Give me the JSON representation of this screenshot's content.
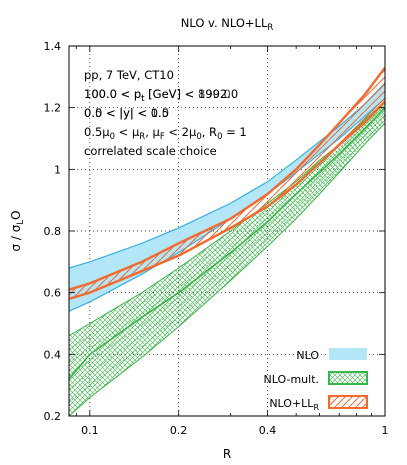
{
  "chart_data": {
    "type": "area",
    "title": "NLO v. NLO+LL_R",
    "xlabel": "R",
    "ylabel": "σ / σ_LO",
    "xscale": "log",
    "xlim": [
      0.085,
      1.0
    ],
    "ylim": [
      0.2,
      1.4
    ],
    "xticks": [
      0.1,
      0.2,
      0.4,
      1
    ],
    "xtick_labels": [
      "0.1",
      "0.2",
      "0.4",
      "1"
    ],
    "yticks": [
      0.2,
      0.4,
      0.6,
      0.8,
      1.0,
      1.2,
      1.4
    ],
    "ytick_labels": [
      "0.2",
      "0.4",
      "0.6",
      "0.8",
      "1",
      "1.2",
      "1.4"
    ],
    "grid": true,
    "legend_position": "bottom-right",
    "annotations": [
      "pp, 7 TeV, CT10",
      "100.0 < p_t [GeV] < 1992.0",
      "0.0 < |y| < 0.5",
      "0.5μ_0 < μ_R, μ_F < 2μ_0, R_0 = 1",
      "correlated scale choice"
    ],
    "overprint": {
      "line2": "100.0 < p_t [GeV] < 890.0",
      "line3": "0.5 < |y| < 1.0"
    },
    "x": [
      0.085,
      0.1,
      0.15,
      0.2,
      0.3,
      0.4,
      0.5,
      0.6,
      0.7,
      0.85,
      1.0
    ],
    "series": [
      {
        "name": "NLO",
        "style": "fill",
        "upper": [
          0.68,
          0.7,
          0.76,
          0.81,
          0.89,
          0.96,
          1.03,
          1.09,
          1.14,
          1.21,
          1.28
        ],
        "lower": [
          0.54,
          0.57,
          0.66,
          0.73,
          0.84,
          0.92,
          0.99,
          1.05,
          1.1,
          1.17,
          1.23
        ]
      },
      {
        "name": "NLO-mult.",
        "style": "crosshatch",
        "upper": [
          0.46,
          0.5,
          0.6,
          0.68,
          0.8,
          0.89,
          0.96,
          1.03,
          1.08,
          1.16,
          1.22
        ],
        "lower": [
          0.2,
          0.26,
          0.39,
          0.49,
          0.64,
          0.75,
          0.84,
          0.92,
          0.99,
          1.08,
          1.15
        ],
        "center": [
          0.32,
          0.4,
          0.52,
          0.6,
          0.73,
          0.83,
          0.92,
          0.99,
          1.05,
          1.13,
          1.2
        ]
      },
      {
        "name": "NLO+LL_R",
        "style": "hatch",
        "upper": [
          0.61,
          0.63,
          0.7,
          0.76,
          0.84,
          0.92,
          1.0,
          1.08,
          1.15,
          1.24,
          1.33
        ],
        "lower": [
          0.58,
          0.6,
          0.67,
          0.72,
          0.81,
          0.88,
          0.95,
          1.02,
          1.08,
          1.15,
          1.22
        ]
      }
    ]
  },
  "colors": {
    "nlo_fill": "#b3e6f7",
    "nlo_edge": "#3aaee3",
    "mult": "#3ab54a",
    "ll": "#f26a2e"
  }
}
